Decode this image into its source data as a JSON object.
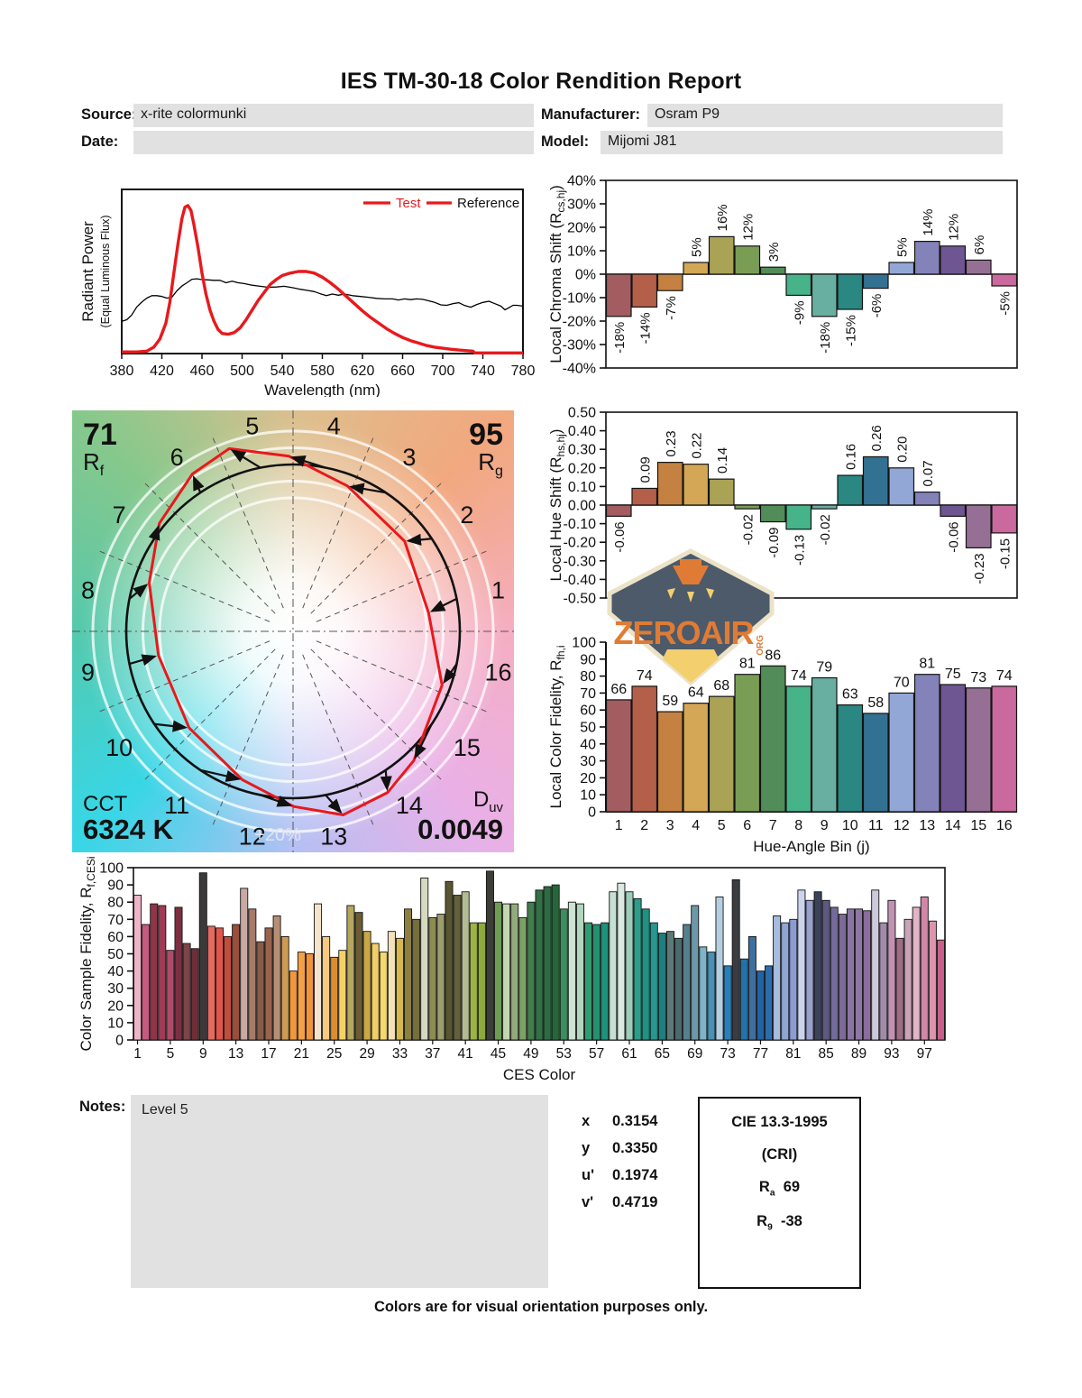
{
  "title": "IES TM-30-18 Color Rendition Report",
  "meta": {
    "source_label": "Source:",
    "source": "x-rite colormunki",
    "date_label": "Date:",
    "date": "",
    "manufacturer_label": "Manufacturer:",
    "manufacturer": "Osram P9",
    "model_label": "Model:",
    "model": "Mijomi J81"
  },
  "notes": {
    "label": "Notes:",
    "text": "Level 5"
  },
  "chromaticity": {
    "rows": [
      {
        "label": "x",
        "value": "0.3154"
      },
      {
        "label": "y",
        "value": "0.3350"
      },
      {
        "label": "u'",
        "value": "0.1974"
      },
      {
        "label": "v'",
        "value": "0.4719"
      }
    ]
  },
  "cri_box": {
    "title": "CIE 13.3-1995",
    "subtitle": "(CRI)",
    "ra_letter": "R",
    "ra_sub": "a",
    "ra_value": "69",
    "r9_letter": "R",
    "r9_sub": "9",
    "r9_value": "-38"
  },
  "footer": "Colors are for visual orientation purposes only.",
  "logo": {
    "text": "ZEROAIR",
    "suffix": "ORG"
  },
  "colors": {
    "test_red": "#e8191c",
    "reference_black": "#000000",
    "field_gray": "#e1e1e1",
    "bin_palette": [
      "#a35c60",
      "#b45f4a",
      "#c58141",
      "#d3a756",
      "#aaa254",
      "#7a9d56",
      "#528c58",
      "#46b389",
      "#68afa2",
      "#2a8782",
      "#327191",
      "#92a7d6",
      "#8382b9",
      "#6e5692",
      "#967094",
      "#c9699d"
    ]
  },
  "chart_data": [
    {
      "id": "spd",
      "type": "line",
      "xlabel": "Wavelength (nm)",
      "ylabel": "Radiant Power",
      "ylabel2": "(Equal Luminous Flux)",
      "xlim": [
        380,
        780
      ],
      "x_ticks": [
        380,
        420,
        460,
        500,
        540,
        580,
        620,
        660,
        700,
        740,
        780
      ],
      "grid": false,
      "legend_position": "top-right",
      "legend": [
        {
          "label": "Test",
          "swatch": "#e8191c",
          "text_color": "#e8191c"
        },
        {
          "label": "Reference",
          "swatch": "#e8191c",
          "text_color": "#111111"
        }
      ],
      "series": [
        {
          "name": "Test",
          "color": "#e8191c",
          "width": 3.4,
          "points": [
            [
              380,
              0.01
            ],
            [
              395,
              0.01
            ],
            [
              405,
              0.015
            ],
            [
              412,
              0.04
            ],
            [
              418,
              0.09
            ],
            [
              424,
              0.19
            ],
            [
              428,
              0.32
            ],
            [
              432,
              0.5
            ],
            [
              436,
              0.68
            ],
            [
              440,
              0.84
            ],
            [
              443,
              0.91
            ],
            [
              446,
              0.92
            ],
            [
              449,
              0.89
            ],
            [
              452,
              0.8
            ],
            [
              456,
              0.66
            ],
            [
              460,
              0.5
            ],
            [
              464,
              0.37
            ],
            [
              468,
              0.27
            ],
            [
              472,
              0.2
            ],
            [
              476,
              0.15
            ],
            [
              480,
              0.125
            ],
            [
              486,
              0.12
            ],
            [
              492,
              0.13
            ],
            [
              498,
              0.16
            ],
            [
              504,
              0.21
            ],
            [
              510,
              0.27
            ],
            [
              516,
              0.33
            ],
            [
              522,
              0.38
            ],
            [
              528,
              0.43
            ],
            [
              534,
              0.46
            ],
            [
              540,
              0.485
            ],
            [
              548,
              0.5
            ],
            [
              556,
              0.51
            ],
            [
              564,
              0.51
            ],
            [
              572,
              0.5
            ],
            [
              580,
              0.475
            ],
            [
              588,
              0.44
            ],
            [
              596,
              0.4
            ],
            [
              604,
              0.355
            ],
            [
              612,
              0.31
            ],
            [
              620,
              0.265
            ],
            [
              628,
              0.225
            ],
            [
              636,
              0.19
            ],
            [
              644,
              0.155
            ],
            [
              652,
              0.125
            ],
            [
              660,
              0.1
            ],
            [
              668,
              0.08
            ],
            [
              676,
              0.065
            ],
            [
              684,
              0.05
            ],
            [
              692,
              0.04
            ],
            [
              700,
              0.033
            ],
            [
              708,
              0.027
            ],
            [
              716,
              0.022
            ],
            [
              724,
              0.018
            ],
            [
              730,
              0.015
            ],
            [
              732,
              0.004
            ],
            [
              780,
              0.004
            ]
          ]
        },
        {
          "name": "Reference",
          "color": "#000000",
          "width": 1.3,
          "points": [
            [
              380,
              0.2
            ],
            [
              385,
              0.21
            ],
            [
              390,
              0.24
            ],
            [
              395,
              0.29
            ],
            [
              400,
              0.32
            ],
            [
              405,
              0.345
            ],
            [
              410,
              0.36
            ],
            [
              415,
              0.36
            ],
            [
              420,
              0.355
            ],
            [
              425,
              0.345
            ],
            [
              430,
              0.35
            ],
            [
              435,
              0.39
            ],
            [
              440,
              0.42
            ],
            [
              445,
              0.44
            ],
            [
              450,
              0.462
            ],
            [
              455,
              0.465
            ],
            [
              460,
              0.46
            ],
            [
              466,
              0.458
            ],
            [
              472,
              0.455
            ],
            [
              478,
              0.455
            ],
            [
              484,
              0.44
            ],
            [
              490,
              0.45
            ],
            [
              496,
              0.44
            ],
            [
              502,
              0.435
            ],
            [
              510,
              0.425
            ],
            [
              518,
              0.418
            ],
            [
              526,
              0.412
            ],
            [
              534,
              0.414
            ],
            [
              542,
              0.418
            ],
            [
              550,
              0.41
            ],
            [
              558,
              0.4
            ],
            [
              566,
              0.392
            ],
            [
              572,
              0.385
            ],
            [
              578,
              0.372
            ],
            [
              584,
              0.36
            ],
            [
              590,
              0.37
            ],
            [
              596,
              0.363
            ],
            [
              602,
              0.37
            ],
            [
              610,
              0.36
            ],
            [
              618,
              0.355
            ],
            [
              626,
              0.35
            ],
            [
              634,
              0.343
            ],
            [
              642,
              0.34
            ],
            [
              650,
              0.34
            ],
            [
              656,
              0.333
            ],
            [
              662,
              0.34
            ],
            [
              668,
              0.335
            ],
            [
              674,
              0.34
            ],
            [
              680,
              0.337
            ],
            [
              686,
              0.328
            ],
            [
              692,
              0.318
            ],
            [
              698,
              0.303
            ],
            [
              704,
              0.3
            ],
            [
              710,
              0.31
            ],
            [
              716,
              0.316
            ],
            [
              722,
              0.298
            ],
            [
              728,
              0.288
            ],
            [
              734,
              0.305
            ],
            [
              740,
              0.318
            ],
            [
              746,
              0.325
            ],
            [
              752,
              0.31
            ],
            [
              758,
              0.295
            ],
            [
              762,
              0.272
            ],
            [
              766,
              0.285
            ],
            [
              770,
              0.3
            ],
            [
              774,
              0.3
            ],
            [
              780,
              0.295
            ]
          ]
        }
      ]
    },
    {
      "id": "chroma",
      "type": "bar",
      "ylabel_main": "Local Chroma Shift (R",
      "ylabel_sub": "cs,hj",
      "ylabel_tail": ")",
      "ylim": [
        -40,
        40
      ],
      "ytick_step": 10,
      "ytick_suffix": "%",
      "categories": [
        1,
        2,
        3,
        4,
        5,
        6,
        7,
        8,
        9,
        10,
        11,
        12,
        13,
        14,
        15,
        16
      ],
      "values": [
        -18,
        -14,
        -7,
        5,
        16,
        12,
        3,
        -9,
        -18,
        -15,
        -6,
        5,
        14,
        12,
        6,
        -5
      ],
      "value_labels": [
        "-18%",
        "-14%",
        "-7%",
        "5%",
        "16%",
        "12%",
        "3%",
        "-9%",
        "-18%",
        "-15%",
        "-6%",
        "5%",
        "14%",
        "12%",
        "6%",
        "-5%"
      ]
    },
    {
      "id": "hue",
      "type": "bar",
      "ylabel_main": "Local Hue Shift (R",
      "ylabel_sub": "hs,hj",
      "ylabel_tail": ")",
      "ylim": [
        -0.5,
        0.5
      ],
      "ytick_step": 0.1,
      "categories": [
        1,
        2,
        3,
        4,
        5,
        6,
        7,
        8,
        9,
        10,
        11,
        12,
        13,
        14,
        15,
        16
      ],
      "values": [
        -0.06,
        0.09,
        0.23,
        0.22,
        0.14,
        -0.02,
        -0.09,
        -0.13,
        -0.02,
        0.16,
        0.26,
        0.2,
        0.07,
        -0.06,
        -0.23,
        -0.15
      ],
      "value_labels": [
        "-0.06",
        "0.09",
        "0.23",
        "0.22",
        "0.14",
        "-0.02",
        "-0.09",
        "-0.13",
        "-0.02",
        "0.16",
        "0.26",
        "0.20",
        "0.07",
        "-0.06",
        "-0.23",
        "-0.15"
      ]
    },
    {
      "id": "fidelity",
      "type": "bar",
      "xlabel": "Hue-Angle Bin (j)",
      "ylabel_main": "Local Color Fidelity, R",
      "ylabel_sub": "fh,i",
      "ylabel_tail": "",
      "ylim": [
        0,
        100
      ],
      "ytick_step": 10,
      "categories": [
        1,
        2,
        3,
        4,
        5,
        6,
        7,
        8,
        9,
        10,
        11,
        12,
        13,
        14,
        15,
        16
      ],
      "values": [
        66,
        74,
        59,
        64,
        68,
        81,
        86,
        74,
        79,
        63,
        58,
        70,
        81,
        75,
        73,
        74
      ]
    },
    {
      "id": "ces",
      "type": "bar",
      "xlabel": "CES Color",
      "ylabel_main": "Color Sample Fidelity, R",
      "ylabel_sub": "f,CESi",
      "ylabel_tail": "",
      "ylim": [
        0,
        100
      ],
      "ytick_step": 10,
      "x_tick_labels": [
        1,
        5,
        9,
        13,
        17,
        21,
        25,
        29,
        33,
        37,
        41,
        45,
        49,
        53,
        57,
        61,
        65,
        69,
        73,
        77,
        81,
        85,
        89,
        93,
        97
      ],
      "values": [
        84,
        67,
        79,
        78,
        52,
        77,
        56,
        53,
        97,
        66,
        65,
        60,
        67,
        88,
        76,
        57,
        65,
        72,
        60,
        40,
        51,
        50,
        79,
        60,
        48,
        52,
        78,
        74,
        63,
        56,
        51,
        63,
        59,
        76,
        70,
        94,
        71,
        73,
        92,
        84,
        86,
        68,
        68,
        98,
        80,
        79,
        79,
        71,
        80,
        87,
        89,
        90,
        76,
        80,
        79,
        68,
        67,
        68,
        86,
        91,
        86,
        82,
        76,
        68,
        62,
        63,
        59,
        67,
        78,
        54,
        51,
        83,
        43,
        93,
        47,
        60,
        40,
        43,
        72,
        68,
        70,
        87,
        81,
        86,
        81,
        77,
        73,
        76,
        76,
        75,
        87,
        68,
        81,
        59,
        70,
        77,
        83,
        69,
        58
      ],
      "bar_colors": [
        "#f0b4c8",
        "#c75a80",
        "#90344a",
        "#a03a55",
        "#b04a68",
        "#7e2e42",
        "#7f4448",
        "#6e2e38",
        "#3c393b",
        "#e66a60",
        "#e0564b",
        "#c34c3c",
        "#9a4f3c",
        "#c9a9a3",
        "#a87a69",
        "#8b5a45",
        "#9a634c",
        "#b78e73",
        "#d09a52",
        "#f0983a",
        "#f3a046",
        "#ef943c",
        "#f4e4cb",
        "#f9c980",
        "#dd8d2e",
        "#f6d266",
        "#b5a75e",
        "#6b5d33",
        "#c9a845",
        "#f2ce6a",
        "#f6d96e",
        "#f2e2ba",
        "#d4b84e",
        "#8d803e",
        "#75703b",
        "#d6d9c0",
        "#8d8d50",
        "#9d9d6d",
        "#585731",
        "#63613c",
        "#b3bb93",
        "#9db344",
        "#8dab3c",
        "#3e3e39",
        "#6d9d53",
        "#c3d7af",
        "#93ab7b",
        "#7ba363",
        "#417d4d",
        "#327047",
        "#2d6b43",
        "#28653b",
        "#3d8d5d",
        "#cee4d2",
        "#b1d6be",
        "#309d71",
        "#219370",
        "#1c937a",
        "#c5e0d4",
        "#dae9e2",
        "#9fcbbb",
        "#2d9d89",
        "#219183",
        "#27978f",
        "#1f7f7f",
        "#5d7a78",
        "#4a6a6e",
        "#56808c",
        "#6c98a8",
        "#7fb3c8",
        "#4a90b4",
        "#b5cfe0",
        "#2980b8",
        "#3a3d40",
        "#2472aa",
        "#3d6f9f",
        "#1f63a8",
        "#2a6cae",
        "#a8bce0",
        "#8fa6d4",
        "#8c9cd0",
        "#ccd4ec",
        "#9aa0cc",
        "#3c4258",
        "#5c5a80",
        "#746a9c",
        "#7e6a9a",
        "#8a74a4",
        "#8d77a5",
        "#8d6d9d",
        "#ccc9dc",
        "#a08ca8",
        "#c193b3",
        "#9d6d85",
        "#c9a3b8",
        "#e3b3c8",
        "#d286a8",
        "#dd94ac",
        "#c75f88"
      ]
    },
    {
      "id": "cvg",
      "type": "color-vector-graphic",
      "rf": "71",
      "rf_letter": "R",
      "rf_sub": "f",
      "rg": "95",
      "rg_letter": "R",
      "rg_sub": "g",
      "cct_label": "CCT",
      "cct": "6324 K",
      "duv_letter": "D",
      "duv_sub": "uv",
      "duv": "0.0049",
      "ring_label": "+20%",
      "bin_labels": [
        1,
        2,
        3,
        4,
        5,
        6,
        7,
        8,
        9,
        10,
        11,
        12,
        13,
        14,
        15,
        16
      ]
    }
  ]
}
